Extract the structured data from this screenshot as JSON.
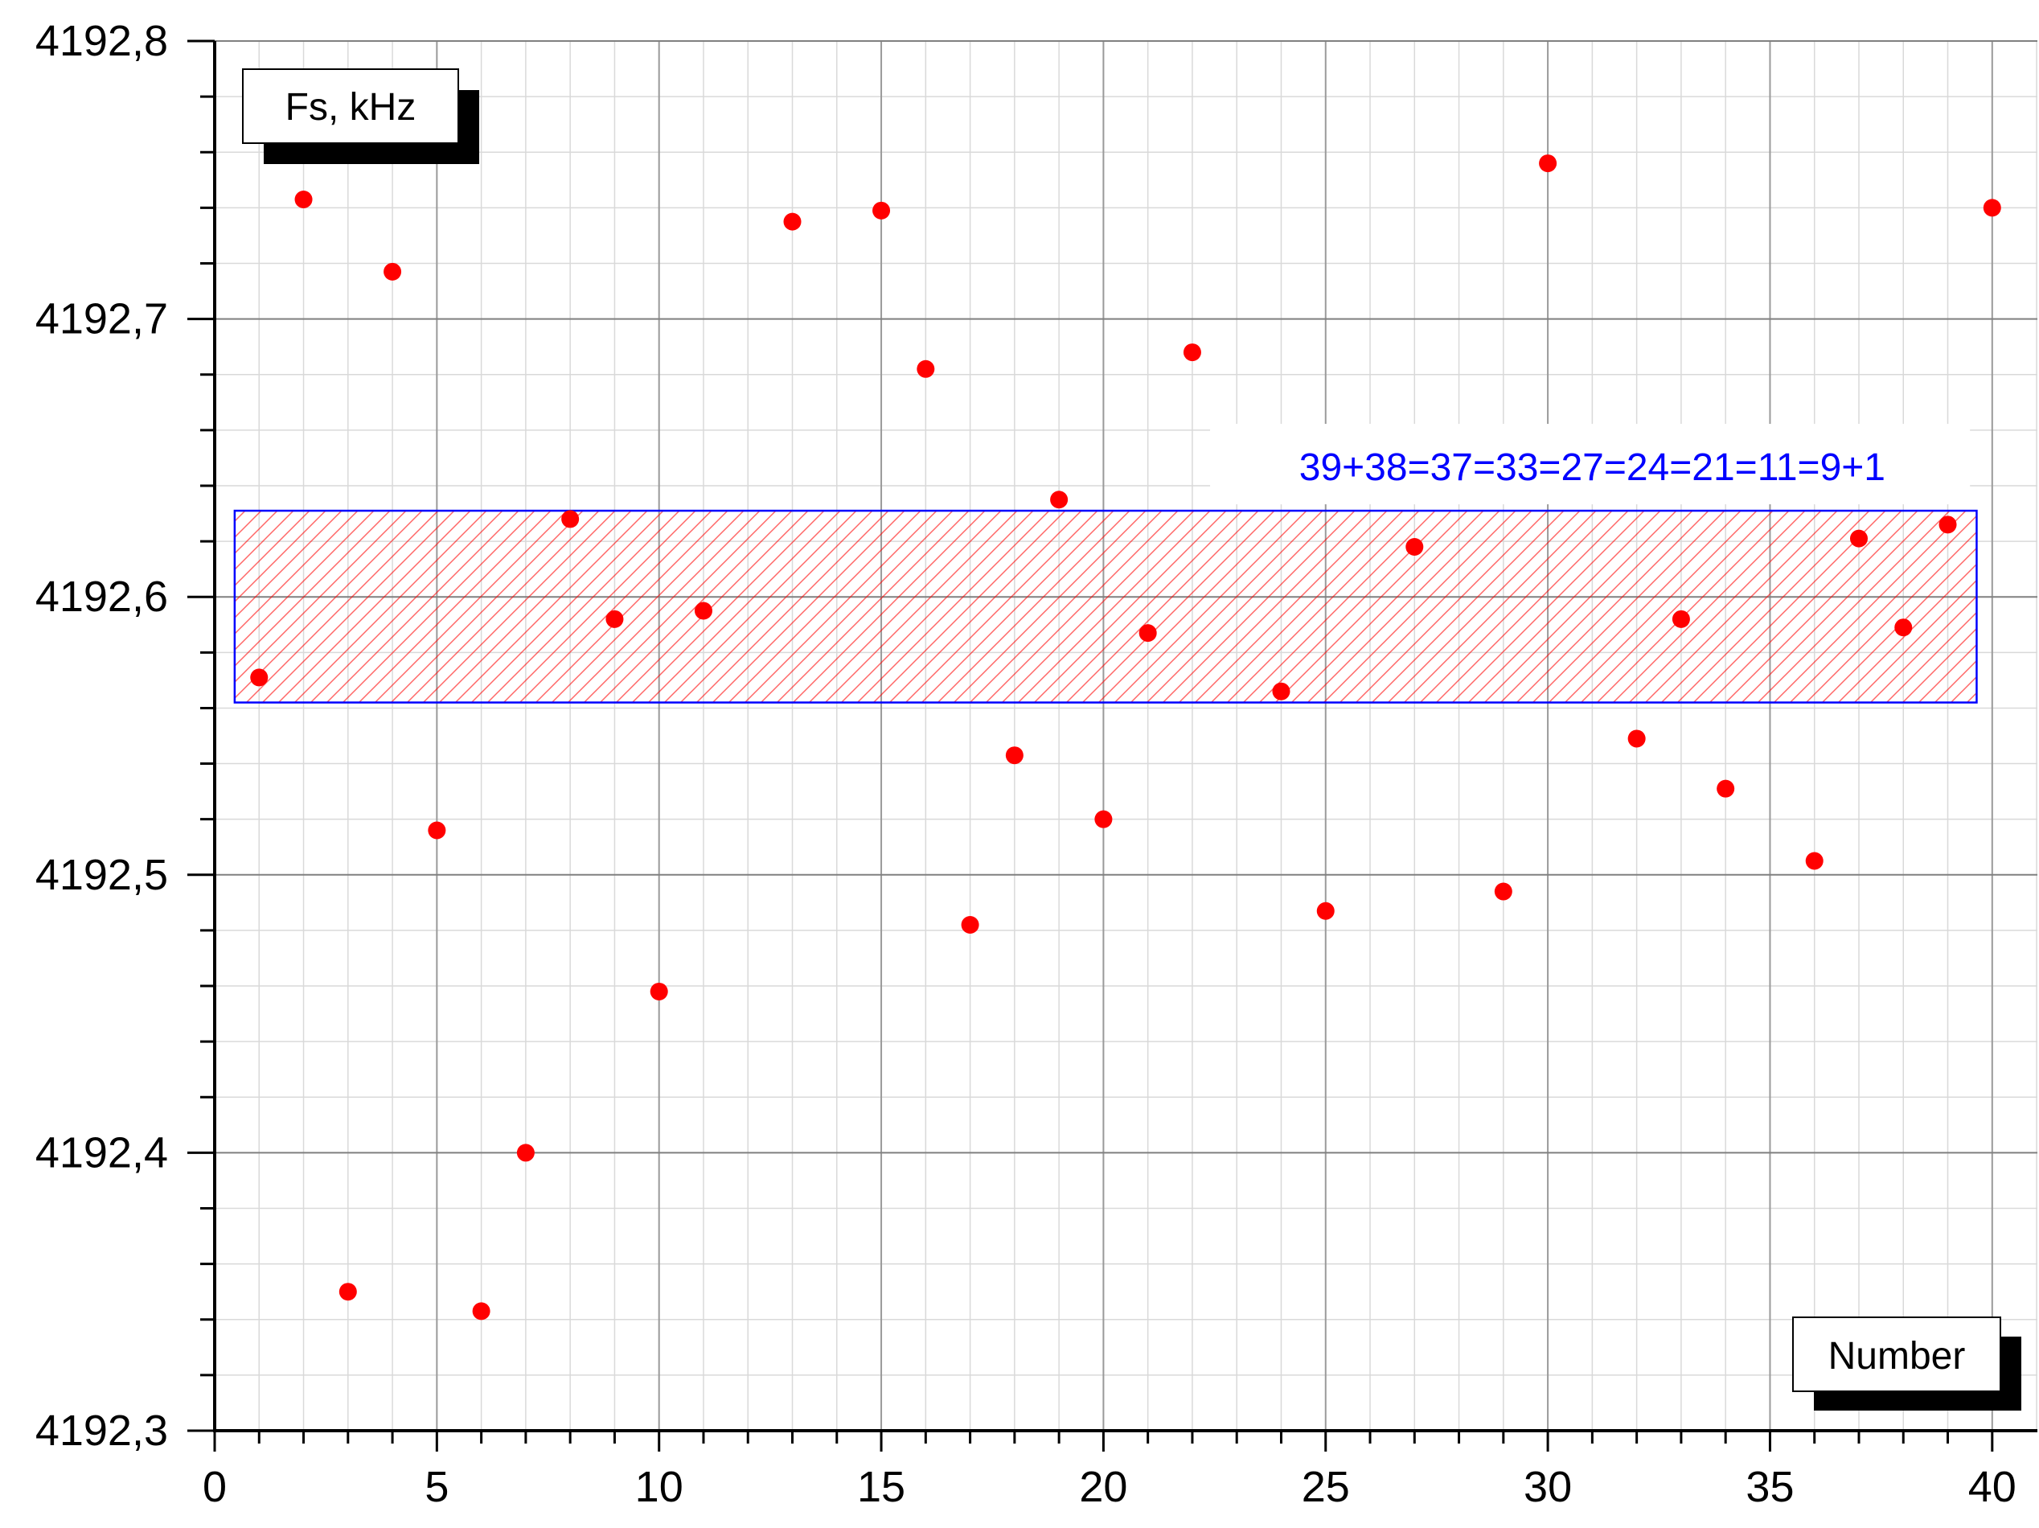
{
  "chart_data": {
    "type": "scatter",
    "title": "",
    "xlabel": "Number",
    "ylabel": "Fs, kHz",
    "xlim": [
      0,
      41
    ],
    "ylim": [
      4192.3,
      4192.8
    ],
    "x_ticks": [
      0,
      5,
      10,
      15,
      20,
      25,
      30,
      35,
      40
    ],
    "x_tick_labels": [
      "0",
      "5",
      "10",
      "15",
      "20",
      "25",
      "30",
      "35",
      "40"
    ],
    "y_ticks": [
      4192.3,
      4192.4,
      4192.5,
      4192.6,
      4192.7,
      4192.8
    ],
    "y_tick_labels": [
      "4192,3",
      "4192,4",
      "4192,5",
      "4192,6",
      "4192,7",
      "4192,8"
    ],
    "grid": true,
    "marker_color": "#ff0000",
    "band_fill_color": "#ff0000",
    "band_border_color": "#0000ff",
    "annotation_color": "#0000ff",
    "band": {
      "x_start": 0.45,
      "x_end": 39.65,
      "y_low": 4192.562,
      "y_high": 4192.631
    },
    "annotation": "39+38=37=33=27=24=21=11=9+1",
    "series": [
      {
        "points": [
          [
            1,
            4192.571
          ],
          [
            2,
            4192.743
          ],
          [
            3,
            4192.35
          ],
          [
            4,
            4192.717
          ],
          [
            5,
            4192.516
          ],
          [
            6,
            4192.343
          ],
          [
            7,
            4192.4
          ],
          [
            8,
            4192.628
          ],
          [
            9,
            4192.592
          ],
          [
            10,
            4192.458
          ],
          [
            11,
            4192.595
          ],
          [
            13,
            4192.735
          ],
          [
            15,
            4192.739
          ],
          [
            16,
            4192.682
          ],
          [
            17,
            4192.482
          ],
          [
            18,
            4192.543
          ],
          [
            19,
            4192.635
          ],
          [
            20,
            4192.52
          ],
          [
            21,
            4192.587
          ],
          [
            22,
            4192.688
          ],
          [
            24,
            4192.566
          ],
          [
            25,
            4192.487
          ],
          [
            27,
            4192.618
          ],
          [
            29,
            4192.494
          ],
          [
            30,
            4192.756
          ],
          [
            32,
            4192.549
          ],
          [
            33,
            4192.592
          ],
          [
            34,
            4192.531
          ],
          [
            36,
            4192.505
          ],
          [
            37,
            4192.621
          ],
          [
            38,
            4192.589
          ],
          [
            39,
            4192.626
          ],
          [
            40,
            4192.74
          ]
        ]
      }
    ]
  }
}
